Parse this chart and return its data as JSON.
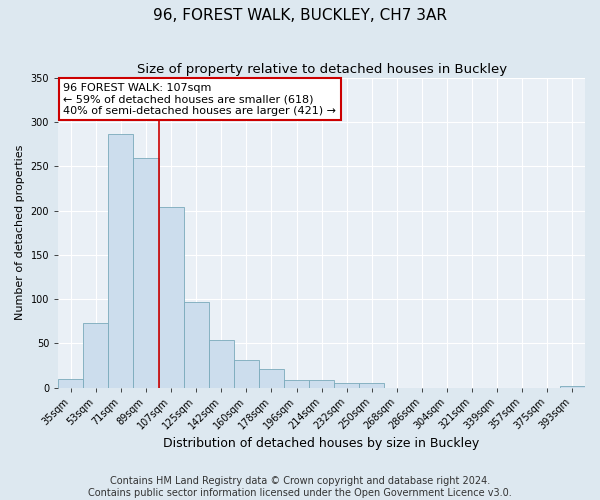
{
  "title": "96, FOREST WALK, BUCKLEY, CH7 3AR",
  "subtitle": "Size of property relative to detached houses in Buckley",
  "xlabel": "Distribution of detached houses by size in Buckley",
  "ylabel": "Number of detached properties",
  "bar_labels": [
    "35sqm",
    "53sqm",
    "71sqm",
    "89sqm",
    "107sqm",
    "125sqm",
    "142sqm",
    "160sqm",
    "178sqm",
    "196sqm",
    "214sqm",
    "232sqm",
    "250sqm",
    "268sqm",
    "286sqm",
    "304sqm",
    "321sqm",
    "339sqm",
    "357sqm",
    "375sqm",
    "393sqm"
  ],
  "bar_values": [
    10,
    73,
    287,
    260,
    204,
    97,
    54,
    31,
    21,
    8,
    9,
    5,
    5,
    0,
    0,
    0,
    0,
    0,
    0,
    0,
    2
  ],
  "bar_color": "#ccdded",
  "bar_edge_color": "#7aaabb",
  "property_line_index": 4,
  "annotation_title": "96 FOREST WALK: 107sqm",
  "annotation_line1": "← 59% of detached houses are smaller (618)",
  "annotation_line2": "40% of semi-detached houses are larger (421) →",
  "annotation_box_color": "#ffffff",
  "annotation_box_edge_color": "#cc0000",
  "property_line_color": "#cc0000",
  "ylim": [
    0,
    350
  ],
  "yticks": [
    0,
    50,
    100,
    150,
    200,
    250,
    300,
    350
  ],
  "footer1": "Contains HM Land Registry data © Crown copyright and database right 2024.",
  "footer2": "Contains public sector information licensed under the Open Government Licence v3.0.",
  "background_color": "#dde8f0",
  "plot_background_color": "#eaf0f6",
  "title_fontsize": 11,
  "subtitle_fontsize": 9.5,
  "xlabel_fontsize": 9,
  "ylabel_fontsize": 8,
  "tick_fontsize": 7,
  "annotation_fontsize": 8,
  "footer_fontsize": 7
}
